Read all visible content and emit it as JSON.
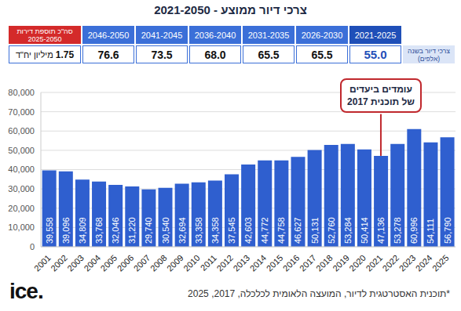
{
  "header": {
    "title": "צרכי דיור ממוצע - 2021-2050"
  },
  "table": {
    "row_label": "צרכי דיור בשנה (אלפים)",
    "columns": [
      {
        "period": "2021-2025",
        "value": "55.0"
      },
      {
        "period": "2026-2030",
        "value": "65.5"
      },
      {
        "period": "2031-2035",
        "value": "65.5"
      },
      {
        "period": "2036-2040",
        "value": "68.0"
      },
      {
        "period": "2041-2045",
        "value": "73.5"
      },
      {
        "period": "2046-2050",
        "value": "76.6"
      }
    ],
    "total": {
      "label": "סה\"כ תוספת דירות 2025-2050",
      "value": "1.75",
      "unit": "מיליון יח\"ד"
    }
  },
  "chart_data": {
    "type": "bar",
    "categories": [
      "2001",
      "2002",
      "2003",
      "2004",
      "2005",
      "2006",
      "2007",
      "2008",
      "2009",
      "2010",
      "2011",
      "2012",
      "2013",
      "2014",
      "2015",
      "2016",
      "2017",
      "2018",
      "2019",
      "2020",
      "2021",
      "2022",
      "2023",
      "2024",
      "2025"
    ],
    "values": [
      39558,
      39096,
      34809,
      33768,
      32046,
      31220,
      29740,
      30540,
      32694,
      33358,
      34358,
      37545,
      42603,
      44772,
      44758,
      46627,
      50131,
      52760,
      53284,
      50414,
      47136,
      53278,
      60996,
      54111,
      56790
    ],
    "value_labels": [
      "39,558",
      "39,096",
      "34,809",
      "33,768",
      "32,046",
      "31,220",
      "29,740",
      "30,540",
      "32,694",
      "33,358",
      "34,358",
      "37,545",
      "42,603",
      "44,772",
      "44,758",
      "46,627",
      "50,131",
      "52,760",
      "53,284",
      "50,414",
      "47,136",
      "53,278",
      "60,996",
      "54,111",
      "56,790"
    ],
    "color": "#2f5fcf",
    "ylim": [
      0,
      80000
    ],
    "yticks": [
      0,
      {
        "value": 10000,
        "label": "10,000"
      },
      {
        "value": 20000,
        "label": "20,000"
      },
      {
        "value": 30000,
        "label": "30,000"
      },
      {
        "value": 40000,
        "label": "40,000"
      },
      {
        "value": 50000,
        "label": "50,000"
      },
      {
        "value": 60000,
        "label": "60,000"
      },
      {
        "value": 70000,
        "label": "70,000"
      },
      {
        "value": 80000,
        "label": "80,000"
      }
    ],
    "grid": true,
    "data_labels": true,
    "annotation": {
      "text": "עומדים ביעדים של תוכנית 2017",
      "category": "2021"
    }
  },
  "footnote": "*תוכנית האסטרטגית לדיור, המועצה הלאומית לכלכלה, 2017, 2025",
  "logo": "ice."
}
